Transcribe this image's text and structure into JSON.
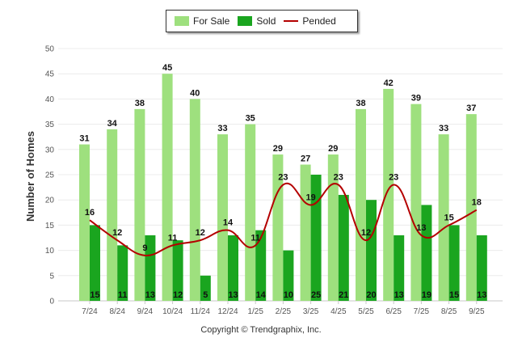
{
  "chart_data": {
    "type": "bar",
    "title": "",
    "ylabel": "Number of Homes",
    "xlabel": "",
    "ylim": [
      0,
      50
    ],
    "yticks": [
      0,
      5,
      10,
      15,
      20,
      25,
      30,
      35,
      40,
      45,
      50
    ],
    "categories": [
      "7/24",
      "8/24",
      "9/24",
      "10/24",
      "11/24",
      "12/24",
      "1/25",
      "2/25",
      "3/25",
      "4/25",
      "5/25",
      "6/25",
      "7/25",
      "8/25",
      "9/25"
    ],
    "series": [
      {
        "name": "For Sale",
        "type": "bar",
        "color": "#9ee07e",
        "values": [
          31,
          34,
          38,
          45,
          40,
          33,
          35,
          29,
          27,
          29,
          38,
          42,
          39,
          33,
          37
        ]
      },
      {
        "name": "Sold",
        "type": "bar",
        "color": "#1aa51f",
        "values": [
          15,
          11,
          13,
          12,
          5,
          13,
          14,
          10,
          25,
          21,
          20,
          13,
          19,
          15,
          13
        ]
      },
      {
        "name": "Pended",
        "type": "line",
        "color": "#b40000",
        "values": [
          16,
          12,
          9,
          11,
          12,
          14,
          11,
          23,
          19,
          23,
          12,
          23,
          13,
          15,
          18
        ]
      }
    ],
    "legend_position": "top-center"
  },
  "footer": {
    "copyright": "Copyright © Trendgraphix, Inc."
  }
}
